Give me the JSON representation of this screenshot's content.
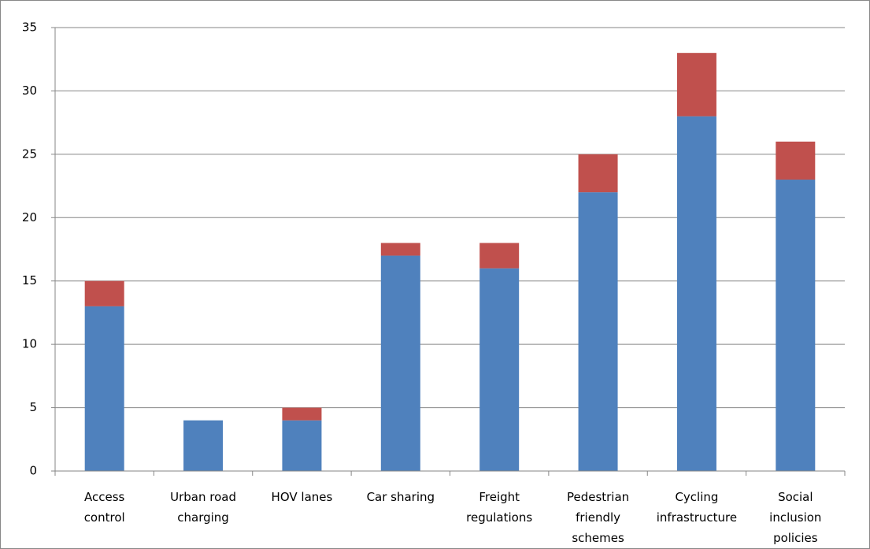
{
  "chart_data": {
    "type": "stacked_bar",
    "categories": [
      "Access control",
      "Urban road charging",
      "HOV lanes",
      "Car sharing",
      "Freight regulations",
      "Pedestrian friendly schemes",
      "Cycling infrastructure",
      "Social inclusion policies"
    ],
    "series": [
      {
        "color": "#4f81bd",
        "values": [
          13,
          4,
          4,
          17,
          16,
          22,
          28,
          23
        ]
      },
      {
        "color": "#c0504d",
        "values": [
          2,
          0,
          1,
          1,
          2,
          3,
          5,
          3
        ]
      }
    ],
    "ylim": [
      0,
      35
    ],
    "yticks": [
      0,
      5,
      10,
      15,
      20,
      25,
      30,
      35
    ],
    "grid": true
  }
}
